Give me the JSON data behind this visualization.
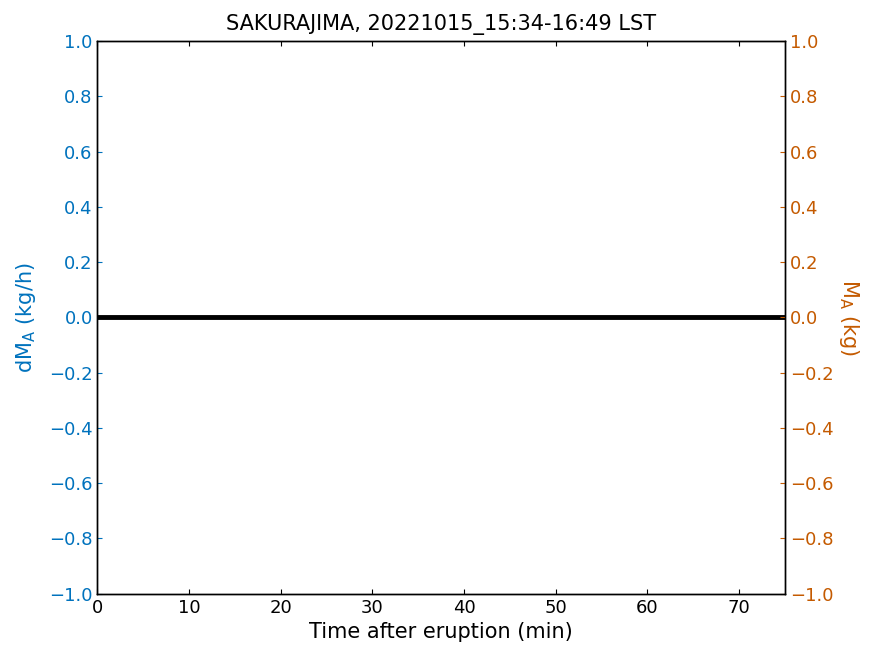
{
  "title": "SAKURAJIMA, 20221015_15:34-16:49 LST",
  "xlabel": "Time after eruption (min)",
  "ylabel_left": "dM_A (kg/h)",
  "ylabel_right": "M_A (kg)",
  "xlim": [
    0,
    75
  ],
  "ylim": [
    -1,
    1
  ],
  "x_ticks": [
    0,
    10,
    20,
    30,
    40,
    50,
    60,
    70
  ],
  "y_ticks": [
    -1,
    -0.8,
    -0.6,
    -0.4,
    -0.2,
    0,
    0.2,
    0.4,
    0.6,
    0.8,
    1
  ],
  "line_x": [
    0,
    75
  ],
  "line_y": [
    0,
    0
  ],
  "line_color": "#000000",
  "line_width": 3.5,
  "left_color": "#0072BD",
  "right_color": "#C45A00",
  "title_fontsize": 15,
  "label_fontsize": 15,
  "tick_fontsize": 13,
  "background_color": "#ffffff",
  "spine_color": "#000000"
}
